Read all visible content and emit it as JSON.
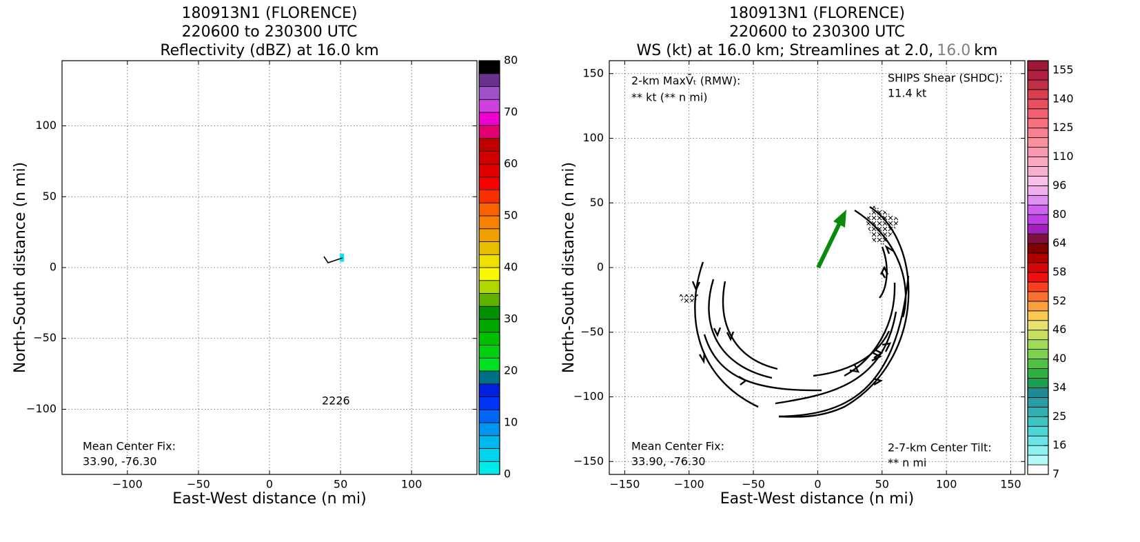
{
  "chart_data": [
    {
      "type": "heatmap",
      "title": [
        "180913N1 (FLORENCE)",
        "220600 to 230300 UTC",
        [
          "Reflectivity (dBZ) at 16.0 km"
        ]
      ],
      "xlabel": "East-West distance (n mi)",
      "ylabel": "North-South distance (n mi)",
      "xlim": [
        -146,
        146
      ],
      "ylim": [
        -146,
        146
      ],
      "xticks": [
        {
          "value": -100,
          "label": "−100"
        },
        {
          "value": -50,
          "label": "−50"
        },
        0,
        50,
        100
      ],
      "yticks": [
        {
          "value": -100,
          "label": "−100"
        },
        {
          "value": -50,
          "label": "−50"
        },
        0,
        50,
        100
      ],
      "grid": true,
      "cells": {
        "x": [
          51
        ],
        "y": [
          7
        ],
        "values": [
          1
        ]
      },
      "colorbar": {
        "levels": [
          0,
          2.5,
          5,
          7.5,
          10,
          12.5,
          15,
          17.5,
          20,
          22.5,
          25,
          27.5,
          30,
          32.5,
          35,
          37.5,
          40,
          42.5,
          45,
          47.5,
          50,
          52.5,
          55,
          57.5,
          60,
          62.5,
          65,
          67.5,
          70,
          72.5,
          75,
          77.5,
          80
        ],
        "ticks": [
          0,
          10,
          20,
          30,
          40,
          50,
          60,
          70,
          80
        ],
        "colors": [
          "#00eaea",
          "#00d4ee",
          "#00b8ee",
          "#0096f0",
          "#0066f8",
          "#0034f8",
          "#0020e0",
          "#007088",
          "#00e020",
          "#00d010",
          "#00c000",
          "#00a800",
          "#009000",
          "#60b000",
          "#b0d800",
          "#f8f800",
          "#f0e000",
          "#e8c000",
          "#f0a000",
          "#f88000",
          "#f86000",
          "#f83000",
          "#f80000",
          "#e00000",
          "#d00000",
          "#c00000",
          "#e00070",
          "#f000d0",
          "#d040e0",
          "#a050c8",
          "#6a3090",
          "#000000"
        ]
      },
      "annotations": [
        "Mean Center Fix:",
        "33.90, -76.30",
        "2226"
      ]
    },
    {
      "type": "streamline",
      "title": [
        "180913N1 (FLORENCE)",
        "220600 to 230300 UTC",
        [
          "WS (kt) at 16.0 km; Streamlines at 2.0,",
          "16.0",
          "km"
        ]
      ],
      "xlabel": "East-West distance (n mi)",
      "ylabel": "North-South distance (n mi)",
      "xlim": [
        -162,
        161
      ],
      "ylim": [
        -160,
        160
      ],
      "xticks": [
        {
          "value": -150,
          "label": "−150"
        },
        {
          "value": -100,
          "label": "−100"
        },
        {
          "value": -50,
          "label": "−50"
        },
        0,
        50,
        100,
        150
      ],
      "yticks": [
        {
          "value": -150,
          "label": "−150"
        },
        {
          "value": -100,
          "label": "−100"
        },
        {
          "value": -50,
          "label": "−50"
        },
        0,
        50,
        100,
        150
      ],
      "grid": true,
      "colorbar": {
        "levels": [
          7,
          10,
          13,
          16,
          19,
          22,
          25,
          28,
          31,
          34,
          36,
          38,
          40,
          42,
          44,
          46,
          48,
          50,
          52,
          54,
          56,
          58,
          60,
          62,
          64,
          69,
          75,
          80,
          85,
          91,
          96,
          101,
          105,
          110,
          115,
          120,
          125,
          130,
          135,
          140,
          145,
          150,
          155,
          160
        ],
        "ticks": [
          7,
          16,
          25,
          34,
          40,
          46,
          52,
          58,
          64,
          80,
          96,
          110,
          125,
          140,
          155
        ],
        "colors": [
          "#ffffff",
          "#b4f8f8",
          "#8ef0f0",
          "#6ae4e4",
          "#4cd6d6",
          "#3cc4c4",
          "#30b0b4",
          "#2a9ca4",
          "#208a94",
          "#18a050",
          "#30b040",
          "#50c040",
          "#80d050",
          "#a0d858",
          "#c8e060",
          "#e8e070",
          "#f8c850",
          "#f8a040",
          "#f87030",
          "#f84020",
          "#f01010",
          "#d00808",
          "#b00000",
          "#800000",
          "#801040",
          "#a020c0",
          "#c040e8",
          "#d060f0",
          "#e090f0",
          "#f0b0f0",
          "#f8c0e8",
          "#f8b0d0",
          "#f8a8c0",
          "#f898b0",
          "#f890a0",
          "#f88090",
          "#f87080",
          "#f06070",
          "#e85060",
          "#d84050",
          "#c03048",
          "#b02040",
          "#a01838"
        ]
      },
      "annotations": [
        "2-km MaxV̄ₜ (RMW):",
        "** kt (** n mi)",
        "SHIPS Shear (SHDC):",
        "11.4 kt",
        "Mean Center Fix:",
        "33.90, -76.30",
        "2-7-km Center Tilt:",
        "** n mi"
      ]
    }
  ]
}
